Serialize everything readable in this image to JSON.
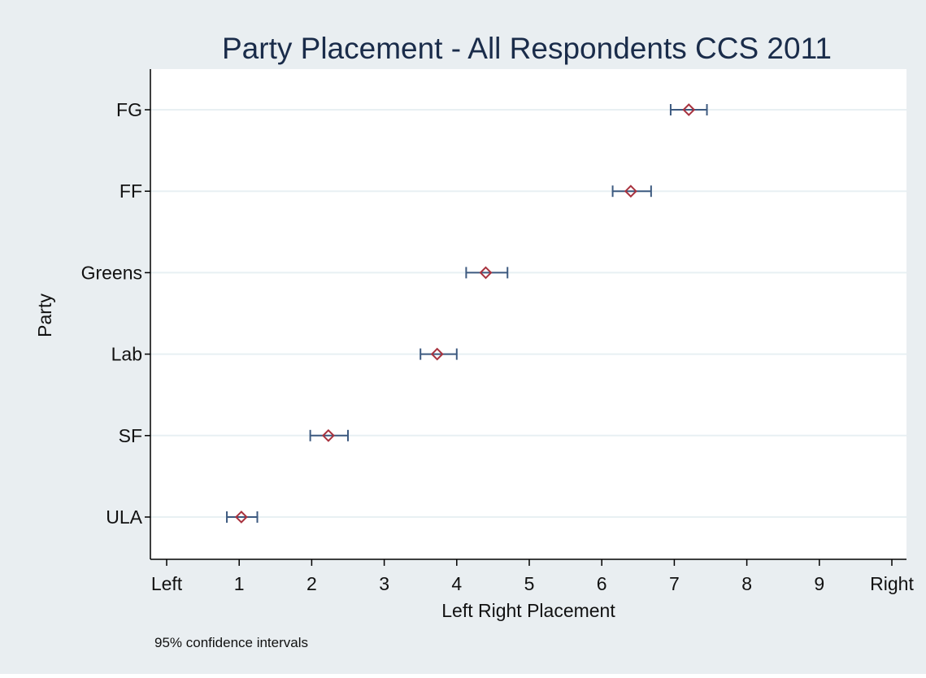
{
  "chart_data": {
    "type": "scatter",
    "title": "Party Placement - All Respondents CCS 2011",
    "xlabel": "Left Right Placement",
    "ylabel": "Party",
    "note": "95% confidence intervals",
    "xlim": [
      0,
      10
    ],
    "x_ticks": [
      {
        "value": 0,
        "label": "Left"
      },
      {
        "value": 1,
        "label": "1"
      },
      {
        "value": 2,
        "label": "2"
      },
      {
        "value": 3,
        "label": "3"
      },
      {
        "value": 4,
        "label": "4"
      },
      {
        "value": 5,
        "label": "5"
      },
      {
        "value": 6,
        "label": "6"
      },
      {
        "value": 7,
        "label": "7"
      },
      {
        "value": 8,
        "label": "8"
      },
      {
        "value": 9,
        "label": "9"
      },
      {
        "value": 10,
        "label": "Right"
      }
    ],
    "grid": "horizontal",
    "points": [
      {
        "category": "FG",
        "mean": 7.2,
        "ci_low": 6.95,
        "ci_high": 7.45
      },
      {
        "category": "FF",
        "mean": 6.4,
        "ci_low": 6.15,
        "ci_high": 6.68
      },
      {
        "category": "Greens",
        "mean": 4.4,
        "ci_low": 4.13,
        "ci_high": 4.7
      },
      {
        "category": "Lab",
        "mean": 3.73,
        "ci_low": 3.5,
        "ci_high": 4.0
      },
      {
        "category": "SF",
        "mean": 2.23,
        "ci_low": 1.98,
        "ci_high": 2.5
      },
      {
        "category": "ULA",
        "mean": 1.03,
        "ci_low": 0.83,
        "ci_high": 1.25
      }
    ],
    "colors": {
      "outer_background": "#e9eef1",
      "plot_background": "#ffffff",
      "gridline": "#e8f0f3",
      "axis": "#000000",
      "error_bar": "#3d5a80",
      "marker": "#a8323e",
      "title": "#1a2c4a"
    }
  }
}
